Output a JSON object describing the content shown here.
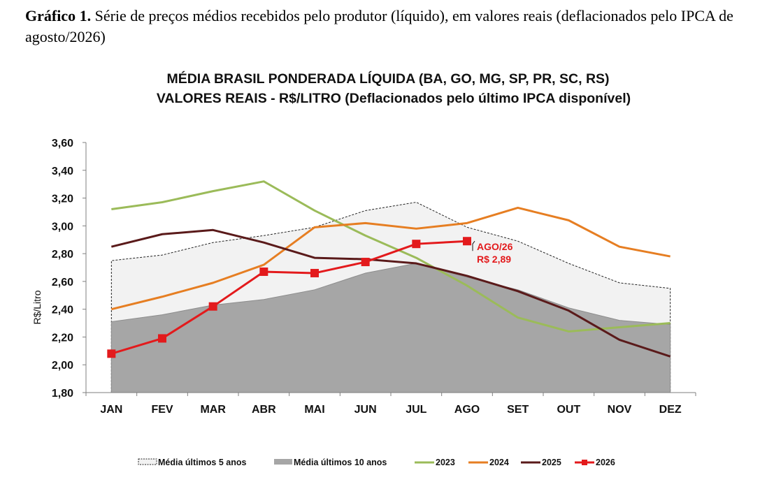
{
  "caption": {
    "label": "Gráfico 1.",
    "text": " Série de preços médios recebidos pelo produtor (líquido), em valores reais (deflacionados pelo IPCA de agosto/2026)"
  },
  "chart_data": {
    "type": "line",
    "title_line1": "MÉDIA BRASIL PONDERADA LÍQUIDA (BA, GO, MG, SP, PR, SC, RS)",
    "title_line2": "VALORES REAIS - R$/LITRO (Deflacionados pelo último IPCA disponível)",
    "ylabel": "R$/Litro",
    "xlabel": "",
    "ylim": [
      1.8,
      3.6
    ],
    "yticks": [
      "1,80",
      "2,00",
      "2,20",
      "2,40",
      "2,60",
      "2,80",
      "3,00",
      "3,20",
      "3,40",
      "3,60"
    ],
    "categories": [
      "JAN",
      "FEV",
      "MAR",
      "ABR",
      "MAI",
      "JUN",
      "JUL",
      "AGO",
      "SET",
      "OUT",
      "NOV",
      "DEZ"
    ],
    "grid": false,
    "legend_position": "bottom",
    "areas": [
      {
        "name": "Média últimos 5 anos",
        "style": "dashed-light",
        "values": [
          2.75,
          2.79,
          2.88,
          2.93,
          2.99,
          3.11,
          3.17,
          2.99,
          2.89,
          2.73,
          2.59,
          2.55
        ]
      },
      {
        "name": "Média últimos 10 anos",
        "style": "gray-fill",
        "values": [
          2.31,
          2.36,
          2.43,
          2.47,
          2.54,
          2.66,
          2.73,
          2.63,
          2.54,
          2.41,
          2.32,
          2.29
        ]
      }
    ],
    "series": [
      {
        "name": "2023",
        "color": "#9bbb59",
        "values": [
          3.12,
          3.17,
          3.25,
          3.32,
          3.11,
          2.93,
          2.77,
          2.57,
          2.34,
          2.24,
          2.27,
          2.3
        ]
      },
      {
        "name": "2024",
        "color": "#e67e22",
        "values": [
          2.4,
          2.49,
          2.59,
          2.72,
          2.99,
          3.02,
          2.98,
          3.02,
          3.13,
          3.04,
          2.85,
          2.78
        ]
      },
      {
        "name": "2025",
        "color": "#5a1a1a",
        "values": [
          2.85,
          2.94,
          2.97,
          2.88,
          2.77,
          2.76,
          2.73,
          2.64,
          2.53,
          2.39,
          2.18,
          2.06
        ]
      },
      {
        "name": "2026",
        "color": "#e31a1c",
        "markers": true,
        "values": [
          2.08,
          2.19,
          2.42,
          2.67,
          2.66,
          2.74,
          2.87,
          2.89,
          null,
          null,
          null,
          null
        ]
      }
    ],
    "annotation": {
      "line1": "AGO/26",
      "line2": "R$ 2,89"
    }
  }
}
